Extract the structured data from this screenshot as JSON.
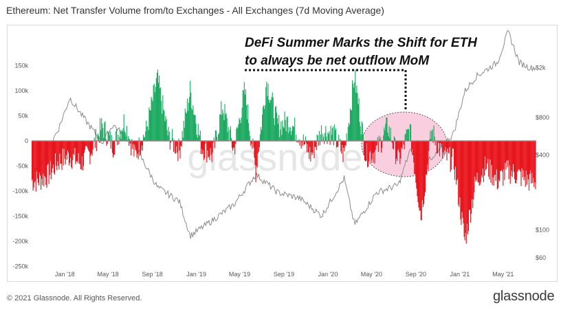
{
  "header": {
    "title": "Ethereum: Net Transfer Volume from/to Exchanges - All Exchanges (7d Moving Average)"
  },
  "footer": {
    "copyright": "© 2021 Glassnode. All Rights Reserved.",
    "brand": "glassnode"
  },
  "watermark": "glassnode",
  "annotation": {
    "line1": "DeFi Summer Marks the Shift for ETH",
    "line2": "to always be net outflow MoM"
  },
  "colors": {
    "inflow": "#1daa61",
    "outflow": "#e8141c",
    "price": "#8a8a8a",
    "zero": "#888888",
    "highlight": "#f4a7c6"
  },
  "chart_data": {
    "type": "bar",
    "title": "Ethereum: Net Transfer Volume from/to Exchanges - All Exchanges (7d Moving Average)",
    "x_ticks": [
      "Jan '18",
      "May '18",
      "Sep '18",
      "Jan '19",
      "May '19",
      "Sep '19",
      "Jan '20",
      "May '20",
      "Sep '20",
      "Jan '21",
      "May '21"
    ],
    "y_left_ticks": [
      "150k",
      "100k",
      "50k",
      "0",
      "-50k",
      "-100k",
      "-150k",
      "-200k",
      "-250k"
    ],
    "y_left_values": [
      150000,
      100000,
      50000,
      0,
      -50000,
      -100000,
      -150000,
      -200000,
      -250000
    ],
    "y_right_ticks": [
      "$2k",
      "$800",
      "$400",
      "$100",
      "$60"
    ],
    "y_right_values": [
      2000,
      800,
      400,
      100,
      60
    ],
    "ylim_left": [
      -250000,
      170000
    ],
    "y_right_scale": "log",
    "series": [
      {
        "name": "Net Transfer Volume",
        "x": [
          "2017-10",
          "2017-11",
          "2017-12",
          "2018-01",
          "2018-02",
          "2018-03",
          "2018-04",
          "2018-05",
          "2018-06",
          "2018-07",
          "2018-08",
          "2018-09",
          "2018-10",
          "2018-11",
          "2018-12",
          "2019-01",
          "2019-02",
          "2019-03",
          "2019-04",
          "2019-05",
          "2019-06",
          "2019-07",
          "2019-08",
          "2019-09",
          "2019-10",
          "2019-11",
          "2019-12",
          "2020-01",
          "2020-02",
          "2020-03",
          "2020-04",
          "2020-05",
          "2020-06",
          "2020-07",
          "2020-08",
          "2020-09",
          "2020-10",
          "2020-11",
          "2020-12",
          "2021-01",
          "2021-02",
          "2021-03",
          "2021-04",
          "2021-05",
          "2021-06",
          "2021-07"
        ],
        "values": [
          -80000,
          -70000,
          -40000,
          -30000,
          -45000,
          -20000,
          30000,
          -10000,
          40000,
          -30000,
          20000,
          125000,
          10000,
          -20000,
          100000,
          -10000,
          -30000,
          70000,
          -20000,
          100000,
          -60000,
          120000,
          30000,
          40000,
          10000,
          -30000,
          20000,
          15000,
          -30000,
          130000,
          -30000,
          -20000,
          30000,
          -40000,
          25000,
          -150000,
          20000,
          -30000,
          -40000,
          -200000,
          -80000,
          -50000,
          -80000,
          -60000,
          -70000,
          -80000
        ]
      },
      {
        "name": "Price",
        "x": [
          "2017-10",
          "2017-12",
          "2018-01",
          "2018-02",
          "2018-04",
          "2018-05",
          "2018-07",
          "2018-09",
          "2018-11",
          "2018-12",
          "2019-02",
          "2019-04",
          "2019-06",
          "2019-08",
          "2019-10",
          "2019-12",
          "2020-02",
          "2020-03",
          "2020-05",
          "2020-07",
          "2020-08",
          "2020-10",
          "2020-12",
          "2021-01",
          "2021-02",
          "2021-04",
          "2021-05",
          "2021-06",
          "2021-07"
        ],
        "values": [
          300,
          650,
          1150,
          850,
          500,
          700,
          470,
          220,
          170,
          90,
          120,
          160,
          280,
          200,
          180,
          130,
          260,
          110,
          200,
          230,
          430,
          360,
          600,
          1300,
          1700,
          2200,
          3900,
          2200,
          2000
        ]
      }
    ]
  }
}
